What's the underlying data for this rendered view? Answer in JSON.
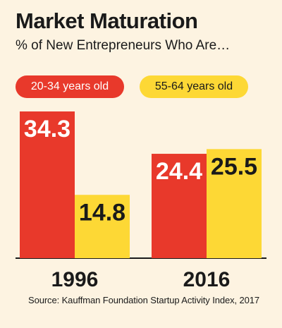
{
  "chart_data": {
    "type": "bar",
    "title": "Market Maturation",
    "subtitle": "% of New Entrepreneurs Who Are…",
    "categories": [
      "1996",
      "2016"
    ],
    "series": [
      {
        "name": "20-34 years old",
        "color": "#e8392b",
        "values": [
          34.3,
          24.4
        ]
      },
      {
        "name": "55-64 years old",
        "color": "#fdd835",
        "values": [
          14.8,
          25.5
        ]
      }
    ],
    "ylim": [
      0,
      34.3
    ],
    "grid": false,
    "legend": "top",
    "source": "Source: Kauffman Foundation Startup Activity Index, 2017"
  }
}
